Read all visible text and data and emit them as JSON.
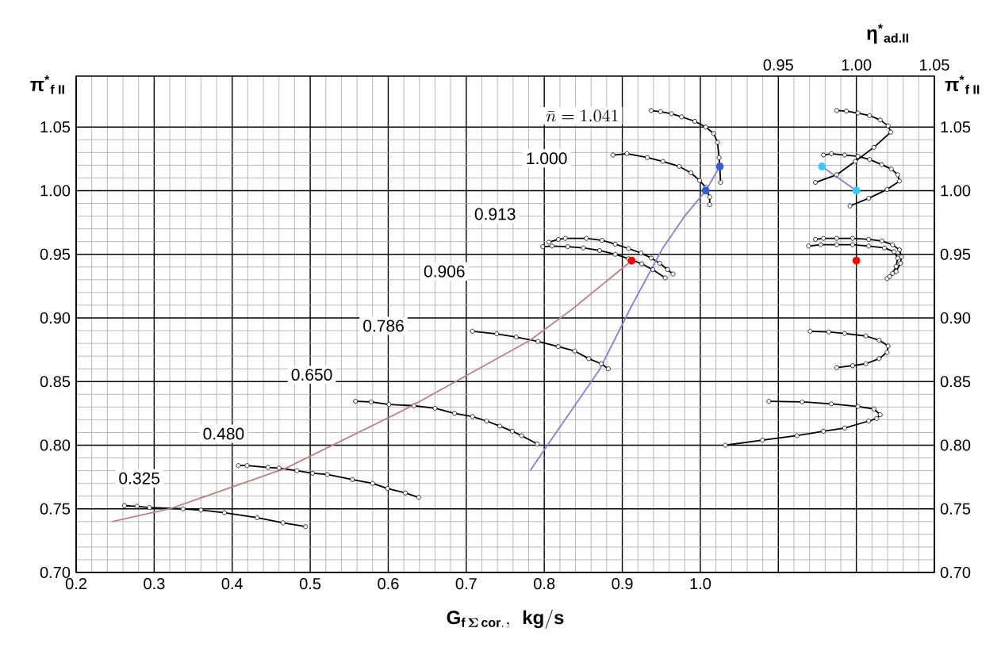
{
  "chart_data": {
    "type": "line",
    "xlabel": "\\mathbf{G}_{\\mathbf{f}\\,\\boldsymbol{\\Sigma}\\,\\mathbf{cor.}},\\;\\,\\mathbf{kg/s}",
    "ylabel": "**π$^{*}$$_{f II}$**",
    "y2label": "**π$^{*}$$_{f II}$**",
    "x2label": "**η$^{*}$$_{ad.II}$**",
    "xlim": [
      0.2,
      1.3
    ],
    "xticks": [
      {
        "value": 0.2,
        "label": "0.2"
      },
      {
        "value": 0.3,
        "label": "0.3"
      },
      {
        "value": 0.4,
        "label": "0.4"
      },
      {
        "value": 0.5,
        "label": "0.5"
      },
      {
        "value": 0.6,
        "label": "0.6"
      },
      {
        "value": 0.7,
        "label": "0.7"
      },
      {
        "value": 0.8,
        "label": "0.8"
      },
      {
        "value": 0.9,
        "label": "0.9"
      },
      {
        "value": 1.0,
        "label": "1.0"
      },
      {
        "value": 1.1,
        "label": null
      },
      {
        "value": 1.2,
        "label": null
      },
      {
        "value": 1.3,
        "label": null
      }
    ],
    "x2lim": [
      0.5,
      1.05
    ],
    "x2ticks": [
      {
        "value": 0.95,
        "label": "0.95"
      },
      {
        "value": 1.0,
        "label": "1.00"
      },
      {
        "value": 1.05,
        "label": "1.05"
      }
    ],
    "ylim": [
      0.7,
      1.09
    ],
    "yticks": [
      {
        "value": 0.7,
        "label": "0.70"
      },
      {
        "value": 0.75,
        "label": "0.75"
      },
      {
        "value": 0.8,
        "label": "0.80"
      },
      {
        "value": 0.85,
        "label": "0.85"
      },
      {
        "value": 0.9,
        "label": "0.90"
      },
      {
        "value": 0.95,
        "label": "0.95"
      },
      {
        "value": 1.0,
        "label": "1.00"
      },
      {
        "value": 1.05,
        "label": "1.05"
      }
    ],
    "y2lim": [
      0.7,
      1.09
    ],
    "y2ticks": [
      {
        "value": 0.7,
        "label": "0.70"
      },
      {
        "value": 0.75,
        "label": "0.75"
      },
      {
        "value": 0.8,
        "label": "0.80"
      },
      {
        "value": 0.85,
        "label": "0.85"
      },
      {
        "value": 0.9,
        "label": "0.90"
      },
      {
        "value": 0.95,
        "label": "0.95"
      },
      {
        "value": 1.0,
        "label": "1.00"
      },
      {
        "value": 1.05,
        "label": "1.05"
      }
    ],
    "grid": true,
    "marker": "circle",
    "series": [
      {
        "color": "#000000",
        "x": [
          0.262,
          0.278,
          0.294,
          0.337,
          0.36,
          0.39,
          0.432,
          0.465,
          0.494
        ],
        "values": [
          0.7525,
          0.752,
          0.751,
          0.75,
          0.749,
          0.747,
          0.743,
          0.739,
          0.736
        ]
      },
      {
        "color": "#000000",
        "x": [
          0.408,
          0.419,
          0.446,
          0.46,
          0.483,
          0.503,
          0.522,
          0.554,
          0.58,
          0.599,
          0.622,
          0.639
        ],
        "values": [
          0.784,
          0.784,
          0.7825,
          0.782,
          0.78,
          0.778,
          0.777,
          0.773,
          0.77,
          0.766,
          0.7625,
          0.759
        ]
      },
      {
        "color": "#000000",
        "x": [
          0.558,
          0.578,
          0.601,
          0.633,
          0.66,
          0.685,
          0.708,
          0.726,
          0.743,
          0.759,
          0.771,
          0.791
        ],
        "values": [
          0.8345,
          0.834,
          0.832,
          0.831,
          0.829,
          0.825,
          0.8225,
          0.819,
          0.815,
          0.811,
          0.8075,
          0.801
        ]
      },
      {
        "color": "#000000",
        "x": [
          0.708,
          0.739,
          0.764,
          0.792,
          0.818,
          0.839,
          0.857,
          0.873,
          0.882
        ],
        "values": [
          0.8895,
          0.8875,
          0.885,
          0.8815,
          0.8775,
          0.874,
          0.868,
          0.864,
          0.86
        ]
      },
      {
        "color": "#000000",
        "x": [
          0.798,
          0.81,
          0.83,
          0.85,
          0.871,
          0.891,
          0.908,
          0.925,
          0.939,
          0.955
        ],
        "values": [
          0.956,
          0.9565,
          0.956,
          0.955,
          0.953,
          0.95,
          0.9465,
          0.9425,
          0.938,
          0.9315
        ]
      },
      {
        "color": "#000000",
        "x": [
          0.806,
          0.818,
          0.827,
          0.854,
          0.874,
          0.891,
          0.908,
          0.924,
          0.937,
          0.948,
          0.958,
          0.965
        ],
        "values": [
          0.9595,
          0.9617,
          0.9625,
          0.9625,
          0.961,
          0.958,
          0.9545,
          0.951,
          0.947,
          0.943,
          0.938,
          0.9345
        ]
      },
      {
        "color": "#000000",
        "x": [
          0.888,
          0.906,
          0.932,
          0.952,
          0.973,
          0.988,
          0.999,
          1.007,
          1.012,
          1.012
        ],
        "values": [
          1.028,
          1.029,
          1.026,
          1.023,
          1.019,
          1.014,
          1.008,
          1.0025,
          0.995,
          0.989
        ]
      },
      {
        "color": "#000000",
        "x": [
          0.937,
          0.949,
          0.963,
          0.976,
          0.993,
          1.007,
          1.017,
          1.022,
          1.024,
          1.025,
          1.026
        ],
        "values": [
          1.063,
          1.062,
          1.0605,
          1.058,
          1.0545,
          1.05,
          1.045,
          1.038,
          1.026,
          1.018,
          1.0065
        ]
      },
      {
        "color": "#000000",
        "axis": "x2",
        "x": [
          0.9439,
          0.9653,
          0.984,
          1.001,
          1.0112,
          1.0153,
          1.013,
          1.0079,
          0.9925,
          0.9789,
          0.9619,
          0.9398,
          0.916
        ],
        "values": [
          0.8345,
          0.834,
          0.8325,
          0.8305,
          0.8285,
          0.824,
          0.821,
          0.819,
          0.8135,
          0.811,
          0.8075,
          0.804,
          0.8
        ]
      },
      {
        "color": "#000000",
        "axis": "x2",
        "x": [
          0.9704,
          0.9823,
          0.9925,
          1.0061,
          1.0146,
          1.0204,
          1.0197,
          1.0146,
          1.0061,
          0.9976,
          0.9874
        ],
        "values": [
          0.8895,
          0.889,
          0.8878,
          0.8858,
          0.8825,
          0.878,
          0.873,
          0.868,
          0.864,
          0.8625,
          0.861
        ]
      },
      {
        "color": "#000000",
        "axis": "x2",
        "x": [
          0.9694,
          0.9772,
          0.9874,
          0.9976,
          1.0079,
          1.018,
          1.0242,
          1.0265,
          1.0255,
          1.0232,
          1.0197
        ],
        "values": [
          0.9565,
          0.9575,
          0.9575,
          0.9575,
          0.9565,
          0.955,
          0.952,
          0.947,
          0.9405,
          0.935,
          0.931
        ]
      },
      {
        "color": "#000000",
        "axis": "x2",
        "x": [
          0.9738,
          0.9789,
          0.9874,
          0.9976,
          1.0079,
          1.0163,
          1.0232,
          1.0276,
          1.0289,
          1.0283,
          1.0255,
          1.0214
        ],
        "values": [
          0.9617,
          0.9625,
          0.9625,
          0.9625,
          0.9617,
          0.9605,
          0.9575,
          0.9535,
          0.948,
          0.943,
          0.9365,
          0.9325
        ]
      },
      {
        "color": "#000000",
        "axis": "x2",
        "x": [
          0.9789,
          0.984,
          0.9925,
          1.001,
          1.0085,
          1.0163,
          1.0224,
          1.0265,
          1.0276,
          1.0197,
          1.0079,
          0.9959
        ],
        "values": [
          1.028,
          1.029,
          1.028,
          1.027,
          1.0245,
          1.0205,
          1.017,
          1.0125,
          1.0075,
          1.001,
          0.994,
          0.988
        ]
      },
      {
        "color": "#000000",
        "axis": "x2",
        "x": [
          0.9874,
          0.9936,
          1.001,
          1.0085,
          1.0153,
          1.0204,
          1.0221,
          1.0112,
          0.9993,
          0.9874,
          0.9738
        ],
        "values": [
          1.063,
          1.0625,
          1.061,
          1.059,
          1.0555,
          1.051,
          1.046,
          1.034,
          1.023,
          1.0125,
          1.0065
        ]
      },
      {
        "color": "#c08080",
        "marker": "none",
        "x": [
          0.246,
          0.32,
          0.469,
          0.626,
          0.782,
          0.837,
          0.912
        ],
        "values": [
          0.74,
          0.75,
          0.782,
          0.8295,
          0.8825,
          0.9075,
          0.945
        ]
      },
      {
        "color": "#8080e0",
        "marker": "none",
        "x": [
          0.782,
          0.803,
          0.871,
          0.912,
          0.952,
          0.98,
          1.007,
          1.025
        ],
        "values": [
          0.78,
          0.799,
          0.8595,
          0.9095,
          0.955,
          0.98,
          1.0,
          1.019
        ]
      },
      {
        "color": "#8080e0",
        "marker": "none",
        "axis": "x2",
        "x": [
          0.978,
          1.0
        ],
        "values": [
          1.019,
          1.0
        ]
      },
      {
        "type": "scatter",
        "color": "#3060d0",
        "x": [
          1.007,
          1.025
        ],
        "values": [
          1.0,
          1.019
        ]
      },
      {
        "type": "scatter",
        "color": "#33ccff",
        "axis": "x2",
        "x": [
          0.978,
          1.0
        ],
        "values": [
          1.019,
          1.0
        ]
      },
      {
        "type": "scatter",
        "color": "#ff0000",
        "x": [
          0.912
        ],
        "values": [
          0.945
        ]
      },
      {
        "type": "scatter",
        "color": "#ff0000",
        "axis": "x2",
        "x": [
          1.0
        ],
        "values": [
          0.945
        ]
      }
    ],
    "annotations": [
      "\\bar{n}=1.041",
      {
        "text": "1.000",
        "x": 0.803,
        "y": 1.0254
      },
      {
        "text": "0.913",
        "x": 0.737,
        "y": 0.9816
      },
      {
        "text": "0.906",
        "x": 0.672,
        "y": 0.9366
      },
      {
        "text": "0.786",
        "x": 0.594,
        "y": 0.8938
      },
      {
        "text": "0.650",
        "x": 0.502,
        "y": 0.8554
      },
      {
        "text": "0.480",
        "x": 0.389,
        "y": 0.809
      },
      {
        "text": "0.325",
        "x": 0.281,
        "y": 0.774
      }
    ]
  }
}
